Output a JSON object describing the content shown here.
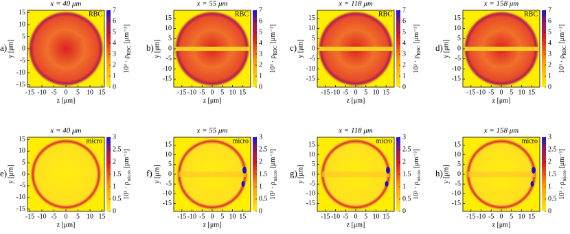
{
  "chart_data": [
    {
      "type": "heatmap",
      "label": "a)",
      "title": "x = 40 μm",
      "tag": "RBC",
      "xlabel": "z [μm]",
      "ylabel": "y [μm]",
      "xlim": [
        -16,
        16
      ],
      "ylim": [
        -16,
        16
      ],
      "xticks": [
        -15,
        -10,
        -5,
        0,
        5,
        10,
        15
      ],
      "yticks": [
        -15,
        -10,
        -5,
        0,
        5,
        10,
        15
      ],
      "clim": [
        0,
        7
      ],
      "cticks": [
        0,
        1,
        2,
        3,
        4,
        5,
        6,
        7
      ],
      "colorbar_label": {
        "base": "10³ · ρ",
        "sub": "RBC",
        "unit": "[μm⁻³]"
      }
    },
    {
      "type": "heatmap",
      "label": "b)",
      "title": "x = 55 μm",
      "tag": "RBC",
      "xlabel": "z [μm]",
      "ylabel": "y [μm]",
      "xlim": [
        -19,
        19
      ],
      "ylim": [
        -19,
        19
      ],
      "xticks": [
        -15,
        -10,
        -5,
        0,
        5,
        10,
        15
      ],
      "yticks": [
        -15,
        -10,
        -5,
        0,
        5,
        10,
        15
      ],
      "clim": [
        0,
        7
      ],
      "cticks": [
        0,
        1,
        2,
        3,
        4,
        5,
        6,
        7
      ],
      "colorbar_label": {
        "base": "10³ · ρ",
        "sub": "RBC",
        "unit": "[μm⁻³]"
      }
    },
    {
      "type": "heatmap",
      "label": "c)",
      "title": "x = 118 μm",
      "tag": "RBC",
      "xlabel": "z [μm]",
      "ylabel": "y [μm]",
      "xlim": [
        -19,
        19
      ],
      "ylim": [
        -19,
        19
      ],
      "xticks": [
        -15,
        -10,
        -5,
        0,
        5,
        10,
        15
      ],
      "yticks": [
        -15,
        -10,
        -5,
        0,
        5,
        10,
        15
      ],
      "clim": [
        0,
        7
      ],
      "cticks": [
        0,
        1,
        2,
        3,
        4,
        5,
        6,
        7
      ],
      "colorbar_label": {
        "base": "10³ · ρ",
        "sub": "RBC",
        "unit": "[μm⁻³]"
      }
    },
    {
      "type": "heatmap",
      "label": "d)",
      "title": "x = 158 μm",
      "tag": "RBC",
      "xlabel": "z [μm]",
      "ylabel": "y [μm]",
      "xlim": [
        -19,
        19
      ],
      "ylim": [
        -19,
        19
      ],
      "xticks": [
        -15,
        -10,
        -5,
        0,
        5,
        10,
        15
      ],
      "yticks": [
        -15,
        -10,
        -5,
        0,
        5,
        10,
        15
      ],
      "clim": [
        0,
        7
      ],
      "cticks": [
        0,
        1,
        2,
        3,
        4,
        5,
        6,
        7
      ],
      "colorbar_label": {
        "base": "10³ · ρ",
        "sub": "RBC",
        "unit": "[μm⁻³]"
      }
    },
    {
      "type": "heatmap",
      "label": "e)",
      "title": "x = 40 μm",
      "tag": "micro",
      "xlabel": "z [μm]",
      "ylabel": "y [μm]",
      "xlim": [
        -16,
        16
      ],
      "ylim": [
        -16,
        16
      ],
      "xticks": [
        -15,
        -10,
        -5,
        0,
        5,
        10,
        15
      ],
      "yticks": [
        -15,
        -10,
        -5,
        0,
        5,
        10,
        15
      ],
      "clim": [
        0,
        3
      ],
      "cticks": [
        0,
        0.5,
        1,
        1.5,
        2,
        2.5,
        3
      ],
      "colorbar_label": {
        "base": "10³ · ρ",
        "sub": "micro",
        "unit": "[μm⁻³]"
      }
    },
    {
      "type": "heatmap",
      "label": "f)",
      "title": "x = 55 μm",
      "tag": "micro",
      "xlabel": "z [μm]",
      "ylabel": "y [μm]",
      "xlim": [
        -19,
        19
      ],
      "ylim": [
        -19,
        19
      ],
      "xticks": [
        -15,
        -10,
        -5,
        0,
        5,
        10,
        15
      ],
      "yticks": [
        -15,
        -10,
        -5,
        0,
        5,
        10,
        15
      ],
      "clim": [
        0,
        3
      ],
      "cticks": [
        0,
        0.5,
        1,
        1.5,
        2,
        2.5,
        3
      ],
      "colorbar_label": {
        "base": "10³ · ρ",
        "sub": "micro",
        "unit": "[μm⁻³]"
      }
    },
    {
      "type": "heatmap",
      "label": "g)",
      "title": "x = 118 μm",
      "tag": "micro",
      "xlabel": "z [μm]",
      "ylabel": "y [μm]",
      "xlim": [
        -19,
        19
      ],
      "ylim": [
        -19,
        19
      ],
      "xticks": [
        -15,
        -10,
        -5,
        0,
        5,
        10,
        15
      ],
      "yticks": [
        -15,
        -10,
        -5,
        0,
        5,
        10,
        15
      ],
      "clim": [
        0,
        3
      ],
      "cticks": [
        0,
        0.5,
        1,
        1.5,
        2,
        2.5,
        3
      ],
      "colorbar_label": {
        "base": "10³ · ρ",
        "sub": "micro",
        "unit": "[μm⁻³]"
      }
    },
    {
      "type": "heatmap",
      "label": "h)",
      "title": "x = 158 μm",
      "tag": "micro",
      "xlabel": "z [μm]",
      "ylabel": "y [μm]",
      "xlim": [
        -19,
        19
      ],
      "ylim": [
        -19,
        19
      ],
      "xticks": [
        -15,
        -10,
        -5,
        0,
        5,
        10,
        15
      ],
      "yticks": [
        -15,
        -10,
        -5,
        0,
        5,
        10,
        15
      ],
      "clim": [
        0,
        3
      ],
      "cticks": [
        0,
        0.5,
        1,
        1.5,
        2,
        2.5,
        3
      ],
      "colorbar_label": {
        "base": "10³ · ρ",
        "sub": "micro",
        "unit": "[μm⁻³]"
      }
    }
  ]
}
